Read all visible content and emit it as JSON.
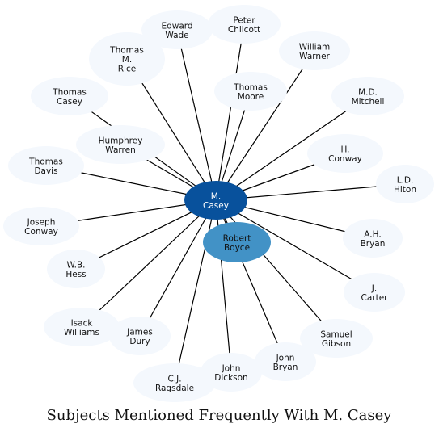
{
  "title": "Subjects Mentioned Frequently With M. Casey",
  "colors": {
    "center": "#08519c",
    "highlight": "#4292c6",
    "node": "#f4f8fd",
    "edge": "#000000"
  },
  "center": {
    "id": "m-casey",
    "label_lines": [
      "M.",
      "Casey"
    ]
  },
  "nodes": [
    {
      "id": "edward-wade",
      "label_lines": [
        "Edward",
        "Wade"
      ]
    },
    {
      "id": "peter-chilcott",
      "label_lines": [
        "Peter",
        "Chilcott"
      ]
    },
    {
      "id": "thomas-m-rice",
      "label_lines": [
        "Thomas",
        "M.",
        "Rice"
      ]
    },
    {
      "id": "william-warner",
      "label_lines": [
        "William",
        "Warner"
      ]
    },
    {
      "id": "thomas-moore",
      "label_lines": [
        "Thomas",
        "Moore"
      ]
    },
    {
      "id": "thomas-casey",
      "label_lines": [
        "Thomas",
        "Casey"
      ]
    },
    {
      "id": "md-mitchell",
      "label_lines": [
        "M.D.",
        "Mitchell"
      ]
    },
    {
      "id": "humphrey-warren",
      "label_lines": [
        "Humphrey",
        "Warren"
      ]
    },
    {
      "id": "h-conway",
      "label_lines": [
        "H.",
        "Conway"
      ]
    },
    {
      "id": "thomas-davis",
      "label_lines": [
        "Thomas",
        "Davis"
      ]
    },
    {
      "id": "ld-hiton",
      "label_lines": [
        "L.D.",
        "Hiton"
      ]
    },
    {
      "id": "joseph-conway",
      "label_lines": [
        "Joseph",
        "Conway"
      ]
    },
    {
      "id": "robert-boyce",
      "label_lines": [
        "Robert",
        "Boyce"
      ],
      "highlight": true
    },
    {
      "id": "ah-bryan",
      "label_lines": [
        "A.H.",
        "Bryan"
      ]
    },
    {
      "id": "wb-hess",
      "label_lines": [
        "W.B.",
        "Hess"
      ]
    },
    {
      "id": "j-carter",
      "label_lines": [
        "J.",
        "Carter"
      ]
    },
    {
      "id": "isack-williams",
      "label_lines": [
        "Isack",
        "Williams"
      ]
    },
    {
      "id": "james-dury",
      "label_lines": [
        "James",
        "Dury"
      ]
    },
    {
      "id": "samuel-gibson",
      "label_lines": [
        "Samuel",
        "Gibson"
      ]
    },
    {
      "id": "john-bryan",
      "label_lines": [
        "John",
        "Bryan"
      ]
    },
    {
      "id": "john-dickson",
      "label_lines": [
        "John",
        "Dickson"
      ]
    },
    {
      "id": "cj-ragsdale",
      "label_lines": [
        "C.J.",
        "Ragsdale"
      ]
    }
  ]
}
